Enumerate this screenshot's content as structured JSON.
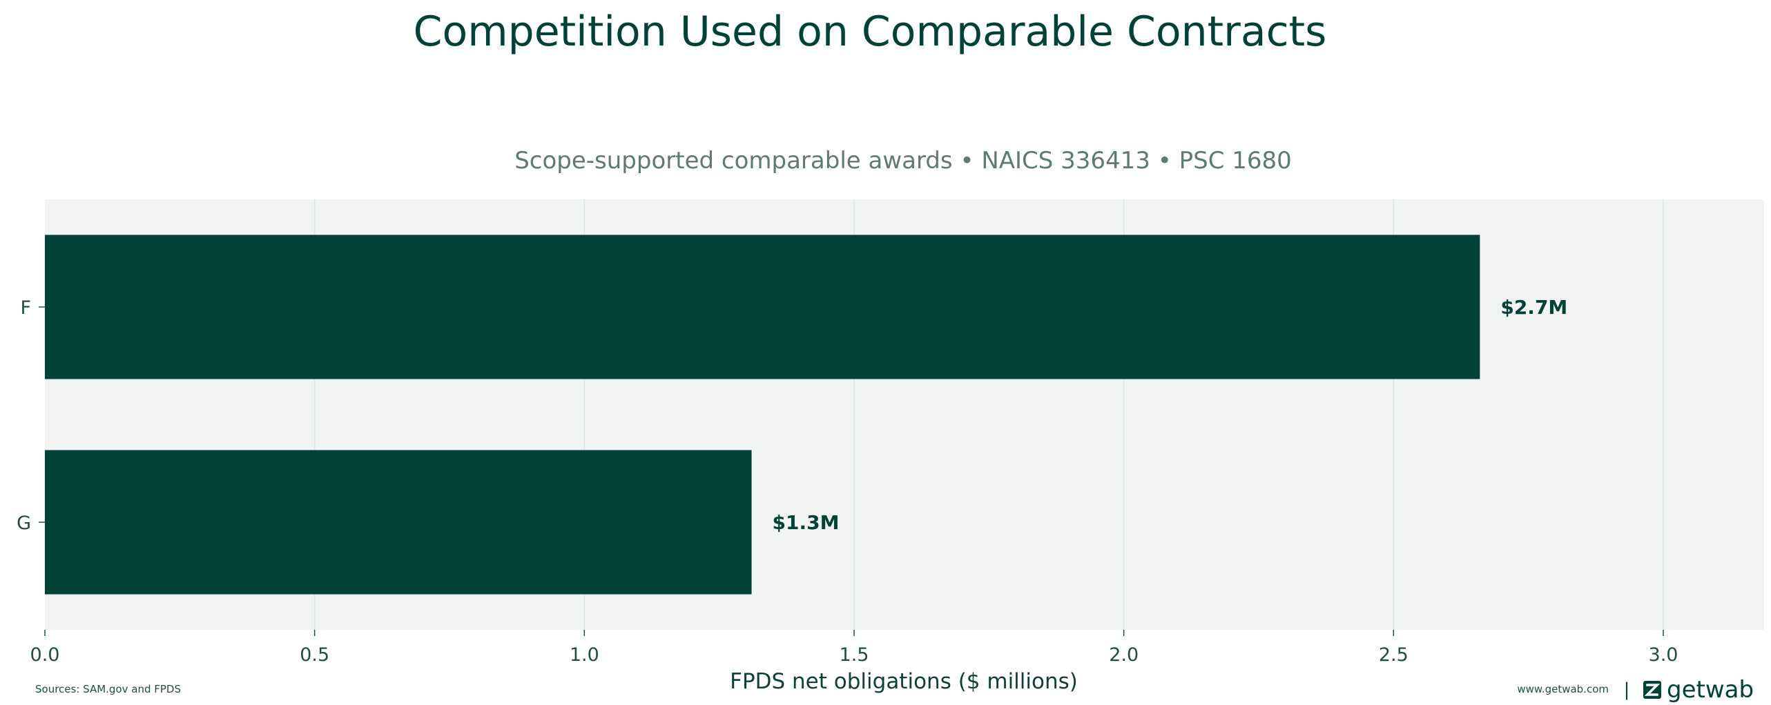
{
  "title": "Competition Used on Comparable Contracts",
  "subtitle": "Scope-supported comparable awards • NAICS 336413 • PSC 1680",
  "chart_data": {
    "type": "bar",
    "orientation": "horizontal",
    "categories": [
      "F",
      "G"
    ],
    "values": [
      2.66,
      1.31
    ],
    "data_labels": [
      "$2.7M",
      "$1.3M"
    ],
    "xlabel": "FPDS net obligations ($ millions)",
    "ylabel": "",
    "xlim": [
      0,
      3.2
    ],
    "xticks": [
      0.0,
      0.5,
      1.0,
      1.5,
      2.0,
      2.5,
      3.0
    ],
    "xtick_labels": [
      "0.0",
      "0.5",
      "1.0",
      "1.5",
      "2.0",
      "2.5",
      "3.0"
    ],
    "grid": "vertical",
    "bar_color": "#004236",
    "plot_background": "#f2f4f3"
  },
  "footer": {
    "sources": "Sources: SAM.gov and FPDS",
    "website": "www.getwab.com",
    "separator": "|",
    "brand": "getwab",
    "brand_icon": "getwab-logo-icon"
  }
}
